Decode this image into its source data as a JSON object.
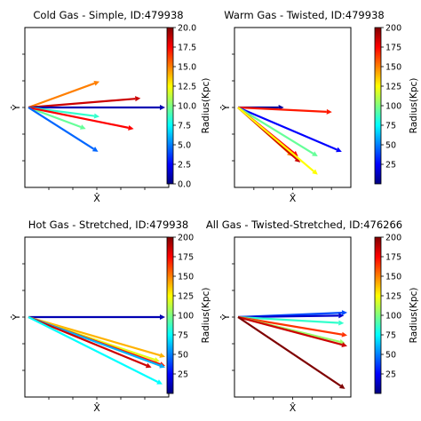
{
  "colormap": "jet",
  "colormap_stops": [
    "#00007f",
    "#0000ff",
    "#007fff",
    "#00ffff",
    "#7fff7f",
    "#ffff00",
    "#ff7f00",
    "#ff0000",
    "#7f0000"
  ],
  "chart_data": [
    {
      "type": "quiver",
      "title": "Cold Gas - Simple, ID:479938",
      "xlabel": "X̂",
      "ylabel": "Ŷ",
      "colorbar": {
        "label": "Radius(Kpc)",
        "min": 0,
        "max": 20,
        "ticks": [
          "0.0",
          "2.5",
          "5.0",
          "7.5",
          "10.0",
          "12.5",
          "15.0",
          "17.5",
          "20.0"
        ]
      },
      "origin": [
        0,
        0.5
      ],
      "arrows": [
        {
          "dx": 0.52,
          "dy": 0.17,
          "radius": 15.0
        },
        {
          "dx": 0.82,
          "dy": 0.06,
          "radius": 18.5
        },
        {
          "dx": 1.0,
          "dy": 0.0,
          "radius": 1.0
        },
        {
          "dx": 0.52,
          "dy": -0.06,
          "radius": 8.5
        },
        {
          "dx": 0.42,
          "dy": -0.14,
          "radius": 9.5
        },
        {
          "dx": 0.77,
          "dy": -0.14,
          "radius": 17.5
        },
        {
          "dx": 0.51,
          "dy": -0.29,
          "radius": 4.5
        }
      ]
    },
    {
      "type": "quiver",
      "title": "Warm Gas - Twisted, ID:479938",
      "xlabel": "X̂",
      "ylabel": "Ŷ",
      "colorbar": {
        "label": "Radius(Kpc)",
        "min": 0,
        "max": 200,
        "ticks": [
          "25",
          "50",
          "75",
          "100",
          "125",
          "150",
          "175",
          "200"
        ]
      },
      "origin": [
        0,
        0.5
      ],
      "arrows": [
        {
          "dx": 0.42,
          "dy": 0.0,
          "radius": 5
        },
        {
          "dx": 0.86,
          "dy": -0.03,
          "radius": 170
        },
        {
          "dx": 0.95,
          "dy": -0.29,
          "radius": 25
        },
        {
          "dx": 0.73,
          "dy": -0.32,
          "radius": 95
        },
        {
          "dx": 0.55,
          "dy": -0.32,
          "radius": 175
        },
        {
          "dx": 0.5,
          "dy": -0.32,
          "radius": 150
        },
        {
          "dx": 0.57,
          "dy": -0.36,
          "radius": 185
        },
        {
          "dx": 0.73,
          "dy": -0.44,
          "radius": 125
        }
      ]
    },
    {
      "type": "quiver",
      "title": "Hot Gas - Stretched, ID:479938",
      "xlabel": "X̂",
      "ylabel": "Ŷ",
      "colorbar": {
        "label": "Radius(Kpc)",
        "min": 0,
        "max": 200,
        "ticks": [
          "25",
          "50",
          "75",
          "100",
          "125",
          "150",
          "175",
          "200"
        ]
      },
      "origin": [
        0,
        0.5
      ],
      "arrows": [
        {
          "dx": 1.0,
          "dy": 0.0,
          "radius": 10
        },
        {
          "dx": 1.0,
          "dy": -0.26,
          "radius": 140
        },
        {
          "dx": 0.96,
          "dy": -0.29,
          "radius": 120
        },
        {
          "dx": 1.0,
          "dy": -0.32,
          "radius": 170
        },
        {
          "dx": 1.0,
          "dy": -0.33,
          "radius": 60
        },
        {
          "dx": 0.9,
          "dy": -0.33,
          "radius": 185
        },
        {
          "dx": 0.98,
          "dy": -0.44,
          "radius": 75
        }
      ]
    },
    {
      "type": "quiver",
      "title": "All Gas - Twisted-Stretched, ID:476266",
      "xlabel": "X̂",
      "ylabel": "Ŷ",
      "colorbar": {
        "label": "Radius(Kpc)",
        "min": 0,
        "max": 200,
        "ticks": [
          "25",
          "50",
          "75",
          "100",
          "125",
          "150",
          "175",
          "200"
        ]
      },
      "origin": [
        0,
        0.5
      ],
      "arrows": [
        {
          "dx": 1.0,
          "dy": 0.03,
          "radius": 40
        },
        {
          "dx": 0.97,
          "dy": 0.01,
          "radius": 15
        },
        {
          "dx": 0.97,
          "dy": -0.04,
          "radius": 85
        },
        {
          "dx": 1.0,
          "dy": -0.12,
          "radius": 165
        },
        {
          "dx": 0.98,
          "dy": -0.17,
          "radius": 105
        },
        {
          "dx": 1.0,
          "dy": -0.19,
          "radius": 185
        },
        {
          "dx": 0.98,
          "dy": -0.47,
          "radius": 200
        }
      ]
    }
  ]
}
